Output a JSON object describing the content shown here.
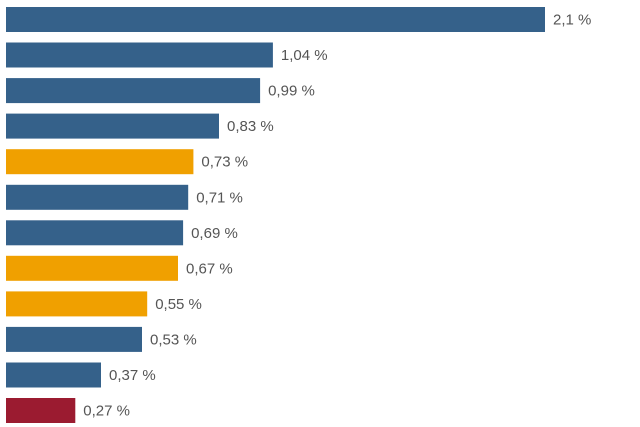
{
  "chart_data": {
    "type": "bar",
    "orientation": "horizontal",
    "title": "",
    "xlabel": "",
    "ylabel": "",
    "xlim": [
      0,
      2.1
    ],
    "grid": false,
    "legend": "none",
    "value_suffix": " %",
    "bars": [
      {
        "value": 2.1,
        "label": "2,1 %",
        "color": "#35618a"
      },
      {
        "value": 1.04,
        "label": "1,04 %",
        "color": "#35618a"
      },
      {
        "value": 0.99,
        "label": "0,99 %",
        "color": "#35618a"
      },
      {
        "value": 0.83,
        "label": "0,83 %",
        "color": "#35618a"
      },
      {
        "value": 0.73,
        "label": "0,73 %",
        "color": "#f0a000"
      },
      {
        "value": 0.71,
        "label": "0,71 %",
        "color": "#35618a"
      },
      {
        "value": 0.69,
        "label": "0,69 %",
        "color": "#35618a"
      },
      {
        "value": 0.67,
        "label": "0,67 %",
        "color": "#f0a000"
      },
      {
        "value": 0.55,
        "label": "0,55 %",
        "color": "#f0a000"
      },
      {
        "value": 0.53,
        "label": "0,53 %",
        "color": "#35618a"
      },
      {
        "value": 0.37,
        "label": "0,37 %",
        "color": "#35618a"
      },
      {
        "value": 0.27,
        "label": "0,27 %",
        "color": "#9b1b30"
      }
    ]
  }
}
